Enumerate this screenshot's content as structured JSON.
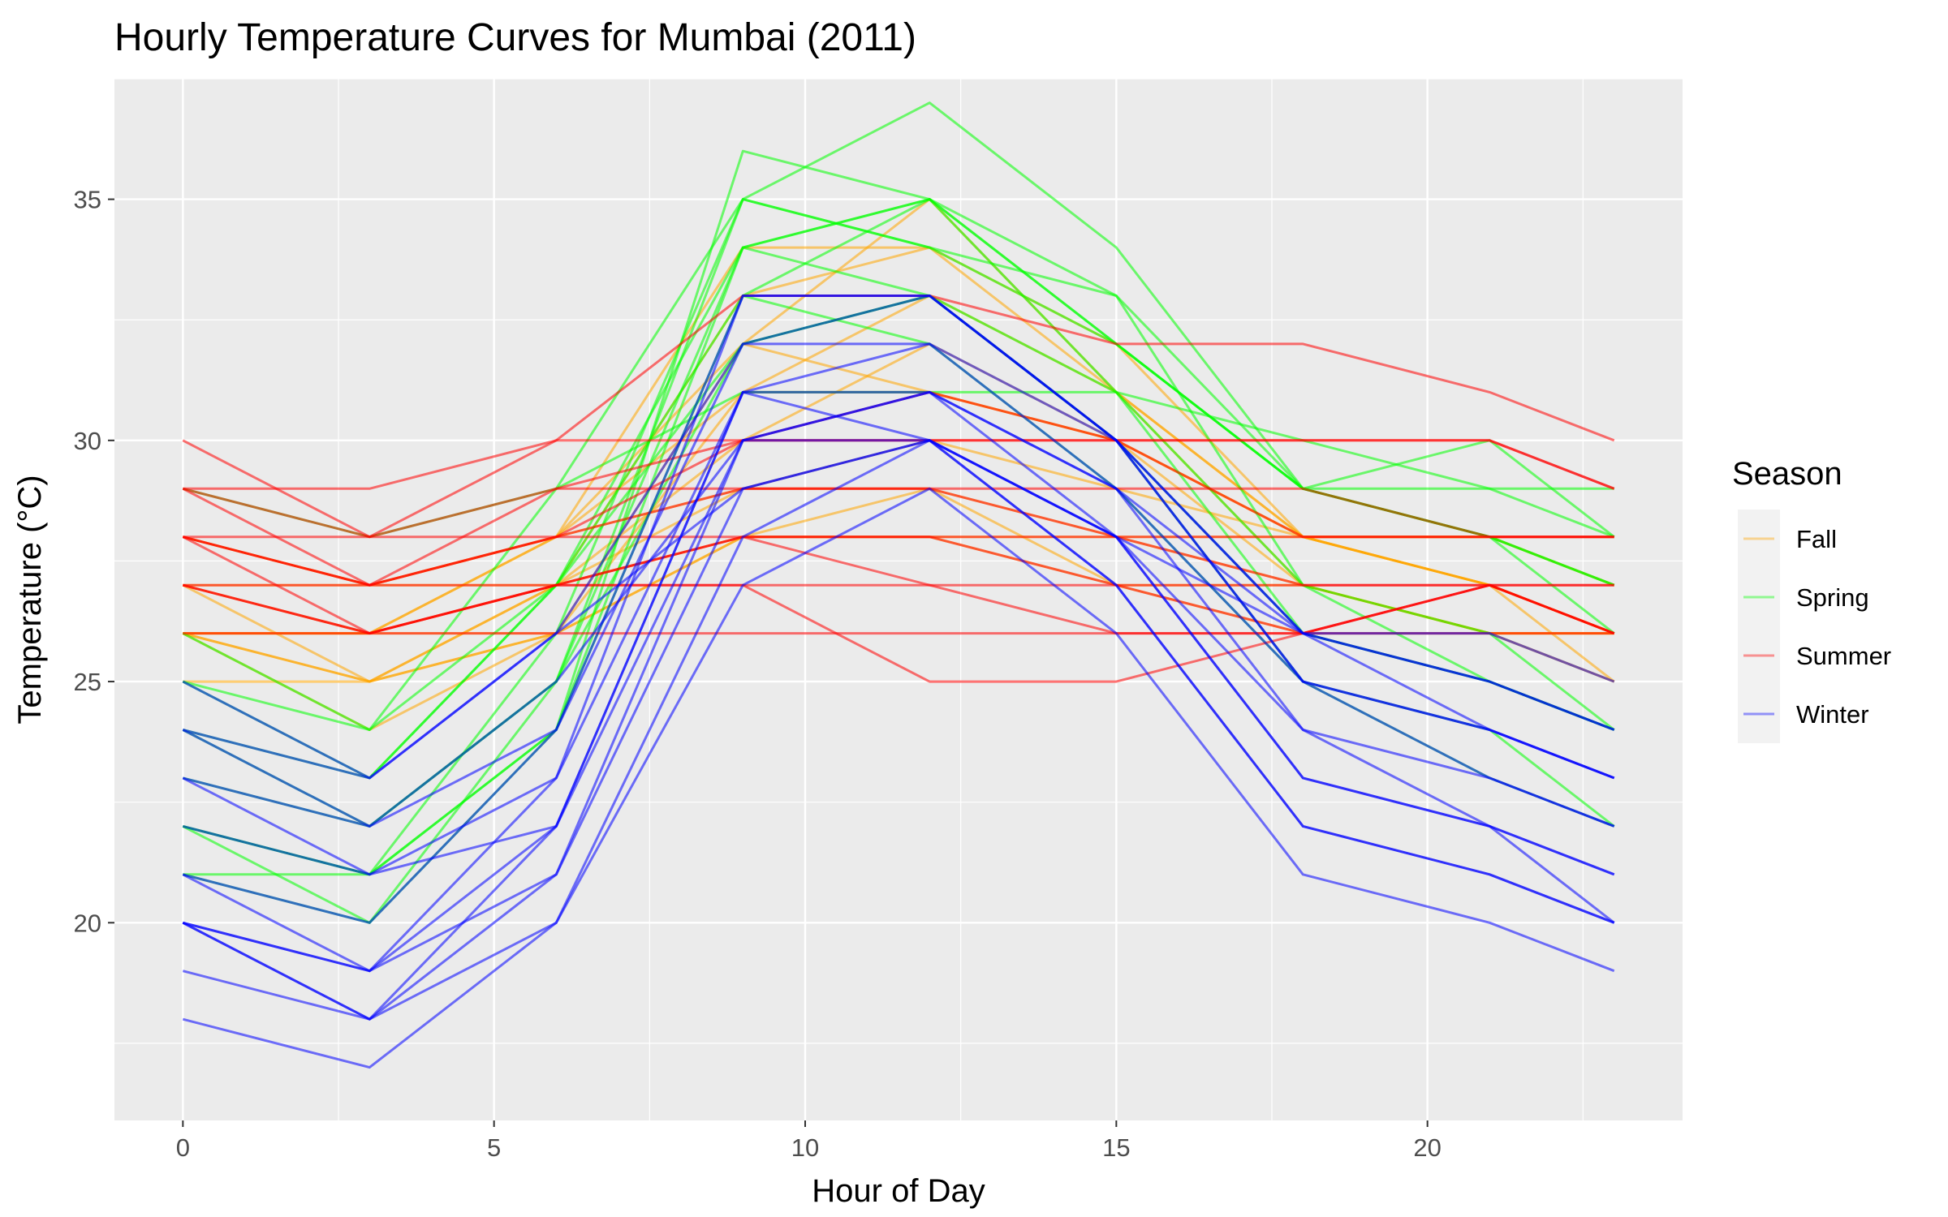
{
  "chart_data": {
    "type": "line",
    "title": "Hourly Temperature Curves for Mumbai (2011)",
    "xlabel": "Hour of Day",
    "ylabel": "Temperature (°C)",
    "xlim": [
      -1.1,
      24.1
    ],
    "ylim": [
      15.9,
      37.5
    ],
    "x_ticks": [
      0,
      5,
      10,
      15,
      20
    ],
    "y_ticks": [
      20,
      25,
      30,
      35
    ],
    "grid": true,
    "legend": {
      "title": "Season",
      "placement": "right",
      "entries": [
        {
          "label": "Fall",
          "color": "#FFA500"
        },
        {
          "label": "Spring",
          "color": "#00FF00"
        },
        {
          "label": "Summer",
          "color": "#FF0000"
        },
        {
          "label": "Winter",
          "color": "#0000FF"
        }
      ]
    },
    "colors": {
      "Fall": "#FFA500",
      "Spring": "#00FF00",
      "Summer": "#FF0000",
      "Winter": "#0000FF",
      "panel_background": "#EBEBEB",
      "grid_line": "#FFFFFF"
    },
    "x": [
      0,
      3,
      6,
      9,
      12,
      15,
      18,
      21,
      23
    ],
    "series": [
      {
        "season": "Fall",
        "values": [
          26,
          24,
          26,
          31,
          33,
          31,
          27,
          26,
          26
        ]
      },
      {
        "season": "Fall",
        "values": [
          27,
          26,
          28,
          32,
          35,
          31,
          28,
          27,
          26
        ]
      },
      {
        "season": "Fall",
        "values": [
          26,
          26,
          27,
          33,
          34,
          32,
          28,
          27,
          25
        ]
      },
      {
        "season": "Fall",
        "values": [
          25,
          25,
          27,
          30,
          32,
          30,
          27,
          26,
          26
        ]
      },
      {
        "season": "Fall",
        "values": [
          26,
          26,
          28,
          34,
          34,
          31,
          28,
          28,
          27
        ]
      },
      {
        "season": "Fall",
        "values": [
          27,
          25,
          26,
          32,
          31,
          30,
          28,
          27,
          26
        ]
      },
      {
        "season": "Fall",
        "values": [
          26,
          25,
          27,
          29,
          29,
          27,
          26,
          26,
          25
        ]
      },
      {
        "season": "Fall",
        "values": [
          28,
          27,
          28,
          31,
          31,
          30,
          28,
          27,
          26
        ]
      },
      {
        "season": "Fall",
        "values": [
          26,
          26,
          26,
          28,
          28,
          27,
          27,
          26,
          26
        ]
      },
      {
        "season": "Fall",
        "values": [
          27,
          27,
          28,
          29,
          30,
          29,
          28,
          28,
          27
        ]
      },
      {
        "season": "Fall",
        "values": [
          26,
          25,
          26,
          28,
          29,
          28,
          27,
          26,
          25
        ]
      },
      {
        "season": "Fall",
        "values": [
          28,
          27,
          27,
          28,
          28,
          28,
          28,
          28,
          28
        ]
      },
      {
        "season": "Spring",
        "values": [
          22,
          20,
          24,
          36,
          35,
          33,
          29,
          28,
          27
        ]
      },
      {
        "season": "Spring",
        "values": [
          21,
          21,
          26,
          35,
          37,
          34,
          29,
          30,
          28
        ]
      },
      {
        "season": "Spring",
        "values": [
          24,
          22,
          25,
          34,
          35,
          32,
          29,
          29,
          28
        ]
      },
      {
        "season": "Spring",
        "values": [
          21,
          20,
          25,
          35,
          34,
          33,
          27,
          25,
          24
        ]
      },
      {
        "season": "Spring",
        "values": [
          22,
          21,
          24,
          34,
          33,
          30,
          25,
          24,
          22
        ]
      },
      {
        "season": "Spring",
        "values": [
          24,
          23,
          27,
          34,
          35,
          31,
          26,
          25,
          24
        ]
      },
      {
        "season": "Spring",
        "values": [
          23,
          22,
          25,
          32,
          33,
          31,
          27,
          26,
          24
        ]
      },
      {
        "season": "Spring",
        "values": [
          26,
          24,
          29,
          35,
          34,
          32,
          29,
          28,
          27
        ]
      },
      {
        "season": "Spring",
        "values": [
          25,
          23,
          27,
          33,
          35,
          32,
          29,
          28,
          26
        ]
      },
      {
        "season": "Spring",
        "values": [
          22,
          21,
          24,
          33,
          32,
          29,
          25,
          23,
          22
        ]
      },
      {
        "season": "Spring",
        "values": [
          29,
          28,
          29,
          31,
          31,
          31,
          30,
          29,
          29
        ]
      },
      {
        "season": "Spring",
        "values": [
          25,
          24,
          27,
          32,
          33,
          30,
          26,
          25,
          24
        ]
      },
      {
        "season": "Summer",
        "values": [
          30,
          28,
          30,
          33,
          33,
          32,
          32,
          31,
          30
        ]
      },
      {
        "season": "Summer",
        "values": [
          29,
          27,
          29,
          30,
          30,
          30,
          30,
          30,
          29
        ]
      },
      {
        "season": "Summer",
        "values": [
          28,
          27,
          28,
          30,
          31,
          30,
          28,
          28,
          28
        ]
      },
      {
        "season": "Summer",
        "values": [
          29,
          29,
          30,
          30,
          30,
          30,
          30,
          30,
          29
        ]
      },
      {
        "season": "Summer",
        "values": [
          27,
          26,
          27,
          28,
          27,
          26,
          26,
          27,
          26
        ]
      },
      {
        "season": "Summer",
        "values": [
          28,
          26,
          27,
          27,
          25,
          25,
          26,
          27,
          26
        ]
      },
      {
        "season": "Summer",
        "values": [
          26,
          26,
          26,
          26,
          26,
          26,
          26,
          26,
          26
        ]
      },
      {
        "season": "Summer",
        "values": [
          27,
          27,
          27,
          27,
          27,
          27,
          27,
          27,
          27
        ]
      },
      {
        "season": "Summer",
        "values": [
          28,
          28,
          28,
          28,
          28,
          28,
          28,
          28,
          28
        ]
      },
      {
        "season": "Summer",
        "values": [
          27,
          26,
          27,
          28,
          28,
          27,
          26,
          27,
          26
        ]
      },
      {
        "season": "Summer",
        "values": [
          28,
          27,
          28,
          29,
          29,
          28,
          27,
          27,
          27
        ]
      },
      {
        "season": "Summer",
        "values": [
          29,
          28,
          29,
          29,
          29,
          29,
          29,
          28,
          28
        ]
      },
      {
        "season": "Winter",
        "values": [
          20,
          18,
          22,
          31,
          32,
          29,
          24,
          22,
          21
        ]
      },
      {
        "season": "Winter",
        "values": [
          19,
          18,
          21,
          30,
          31,
          28,
          23,
          22,
          20
        ]
      },
      {
        "season": "Winter",
        "values": [
          20,
          19,
          23,
          33,
          33,
          30,
          25,
          23,
          22
        ]
      },
      {
        "season": "Winter",
        "values": [
          21,
          20,
          24,
          32,
          32,
          30,
          26,
          24,
          23
        ]
      },
      {
        "season": "Winter",
        "values": [
          18,
          17,
          20,
          27,
          29,
          26,
          21,
          20,
          19
        ]
      },
      {
        "season": "Winter",
        "values": [
          20,
          18,
          20,
          28,
          30,
          27,
          22,
          21,
          20
        ]
      },
      {
        "season": "Winter",
        "values": [
          23,
          21,
          23,
          31,
          31,
          29,
          25,
          24,
          23
        ]
      },
      {
        "season": "Winter",
        "values": [
          22,
          21,
          22,
          30,
          30,
          28,
          24,
          23,
          22
        ]
      },
      {
        "season": "Winter",
        "values": [
          20,
          19,
          22,
          31,
          30,
          28,
          23,
          22,
          21
        ]
      },
      {
        "season": "Winter",
        "values": [
          25,
          23,
          26,
          29,
          30,
          28,
          26,
          26,
          25
        ]
      },
      {
        "season": "Winter",
        "values": [
          24,
          22,
          25,
          30,
          31,
          29,
          26,
          25,
          24
        ]
      },
      {
        "season": "Winter",
        "values": [
          21,
          19,
          21,
          29,
          30,
          27,
          22,
          21,
          20
        ]
      },
      {
        "season": "Winter",
        "values": [
          23,
          22,
          24,
          33,
          33,
          30,
          25,
          24,
          23
        ]
      },
      {
        "season": "Winter",
        "values": [
          24,
          23,
          26,
          32,
          33,
          30,
          26,
          25,
          24
        ]
      }
    ]
  }
}
